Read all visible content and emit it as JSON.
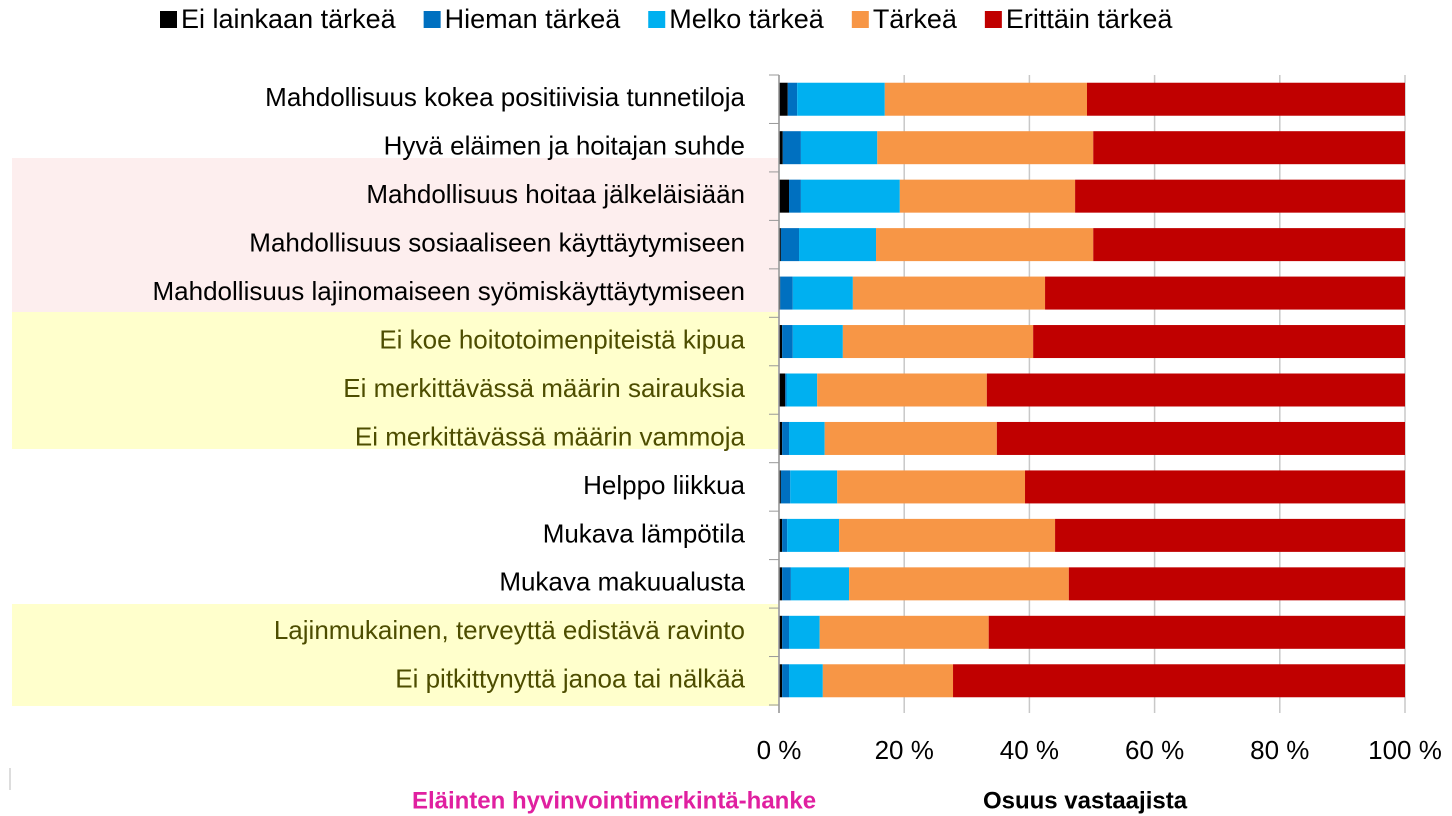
{
  "chart_data": {
    "type": "stacked_barh",
    "categories": [
      "Mahdollisuus kokea positiivisia tunnetiloja",
      "Hyvä eläimen ja hoitajan suhde",
      "Mahdollisuus hoitaa jälkeläisiään",
      "Mahdollisuus sosiaaliseen käyttäytymiseen",
      "Mahdollisuus lajinomaiseen syömiskäyttäytymiseen",
      "Ei koe hoitotoimenpiteistä kipua",
      "Ei merkittävässä määrin sairauksia",
      "Ei merkittävässä määrin vammoja",
      "Helppo liikkua",
      "Mukava lämpötila",
      "Mukava makuualusta",
      "Lajinmukainen, terveyttä edistävä ravinto",
      "Ei pitkittynyttä janoa tai nälkää"
    ],
    "series": [
      {
        "name": "Ei lainkaan tärkeä",
        "color": "#000000",
        "values": [
          1.4,
          0.6,
          1.6,
          0.3,
          0.2,
          0.5,
          1.0,
          0.5,
          0.3,
          0.5,
          0.5,
          0.5,
          0.5
        ]
      },
      {
        "name": "Hieman tärkeä",
        "color": "#0070c0",
        "values": [
          1.5,
          2.9,
          1.9,
          2.9,
          2.0,
          1.7,
          0.2,
          1.1,
          1.5,
          0.8,
          1.4,
          1.1,
          1.1
        ]
      },
      {
        "name": "Melko tärkeä",
        "color": "#00b0f0",
        "values": [
          14.0,
          12.2,
          15.8,
          12.3,
          9.6,
          8.0,
          4.9,
          5.7,
          7.5,
          8.3,
          9.3,
          4.9,
          5.4
        ]
      },
      {
        "name": "Tärkeä",
        "color": "#f79646",
        "values": [
          32.3,
          34.5,
          28.0,
          34.7,
          30.7,
          30.4,
          27.1,
          27.5,
          30.0,
          34.5,
          35.1,
          27.0,
          20.8
        ]
      },
      {
        "name": "Erittäin tärkeä",
        "color": "#c00000",
        "values": [
          50.8,
          49.8,
          52.7,
          49.8,
          57.5,
          59.4,
          66.8,
          65.2,
          60.7,
          55.9,
          53.7,
          66.5,
          72.2
        ]
      }
    ],
    "xlim": [
      0,
      100
    ],
    "xticks": [
      {
        "value": 0,
        "label": "0 %"
      },
      {
        "value": 20,
        "label": "20 %"
      },
      {
        "value": 40,
        "label": "40 %"
      },
      {
        "value": 60,
        "label": "60 %"
      },
      {
        "value": 80,
        "label": "80 %"
      },
      {
        "value": 100,
        "label": "100 %"
      }
    ],
    "xlabel": "Osuus vastaajista",
    "source": "Eläinten hyvinvointimerkintä-hanke",
    "grid": true,
    "legend": "top"
  }
}
